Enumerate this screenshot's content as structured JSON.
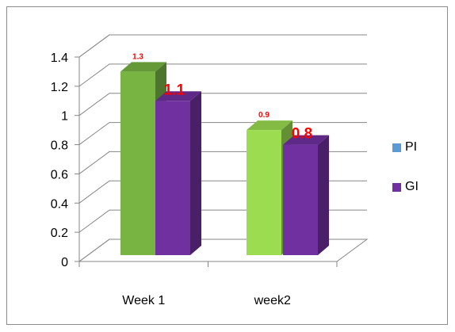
{
  "chart_data": {
    "type": "bar",
    "categories": [
      "Week 1",
      "week2"
    ],
    "series": [
      {
        "name": "PI",
        "values": [
          1.3,
          0.9
        ],
        "labels": [
          "1.3",
          "0.9"
        ],
        "legend_color": "#5b9bd5"
      },
      {
        "name": "GI",
        "values": [
          1.1,
          0.8
        ],
        "labels": [
          "1.1",
          "0.8"
        ],
        "legend_color": "#7030a0"
      }
    ],
    "y_ticks": [
      "0",
      "0.2",
      "0.4",
      "0.6",
      "0.8",
      "1",
      "1.2",
      "1.4"
    ],
    "ylim": [
      0,
      1.4
    ],
    "grid": true,
    "legend_position": "right",
    "bar_3d": true,
    "colors": {
      "pi_week1": "#77b442",
      "pi_week2": "#9bdc51",
      "gi": "#7030a0",
      "data_label": "#ff0000"
    }
  },
  "legend": {
    "items": [
      {
        "label": "PI",
        "color": "#5b9bd5"
      },
      {
        "label": "GI",
        "color": "#7030a0"
      }
    ]
  }
}
